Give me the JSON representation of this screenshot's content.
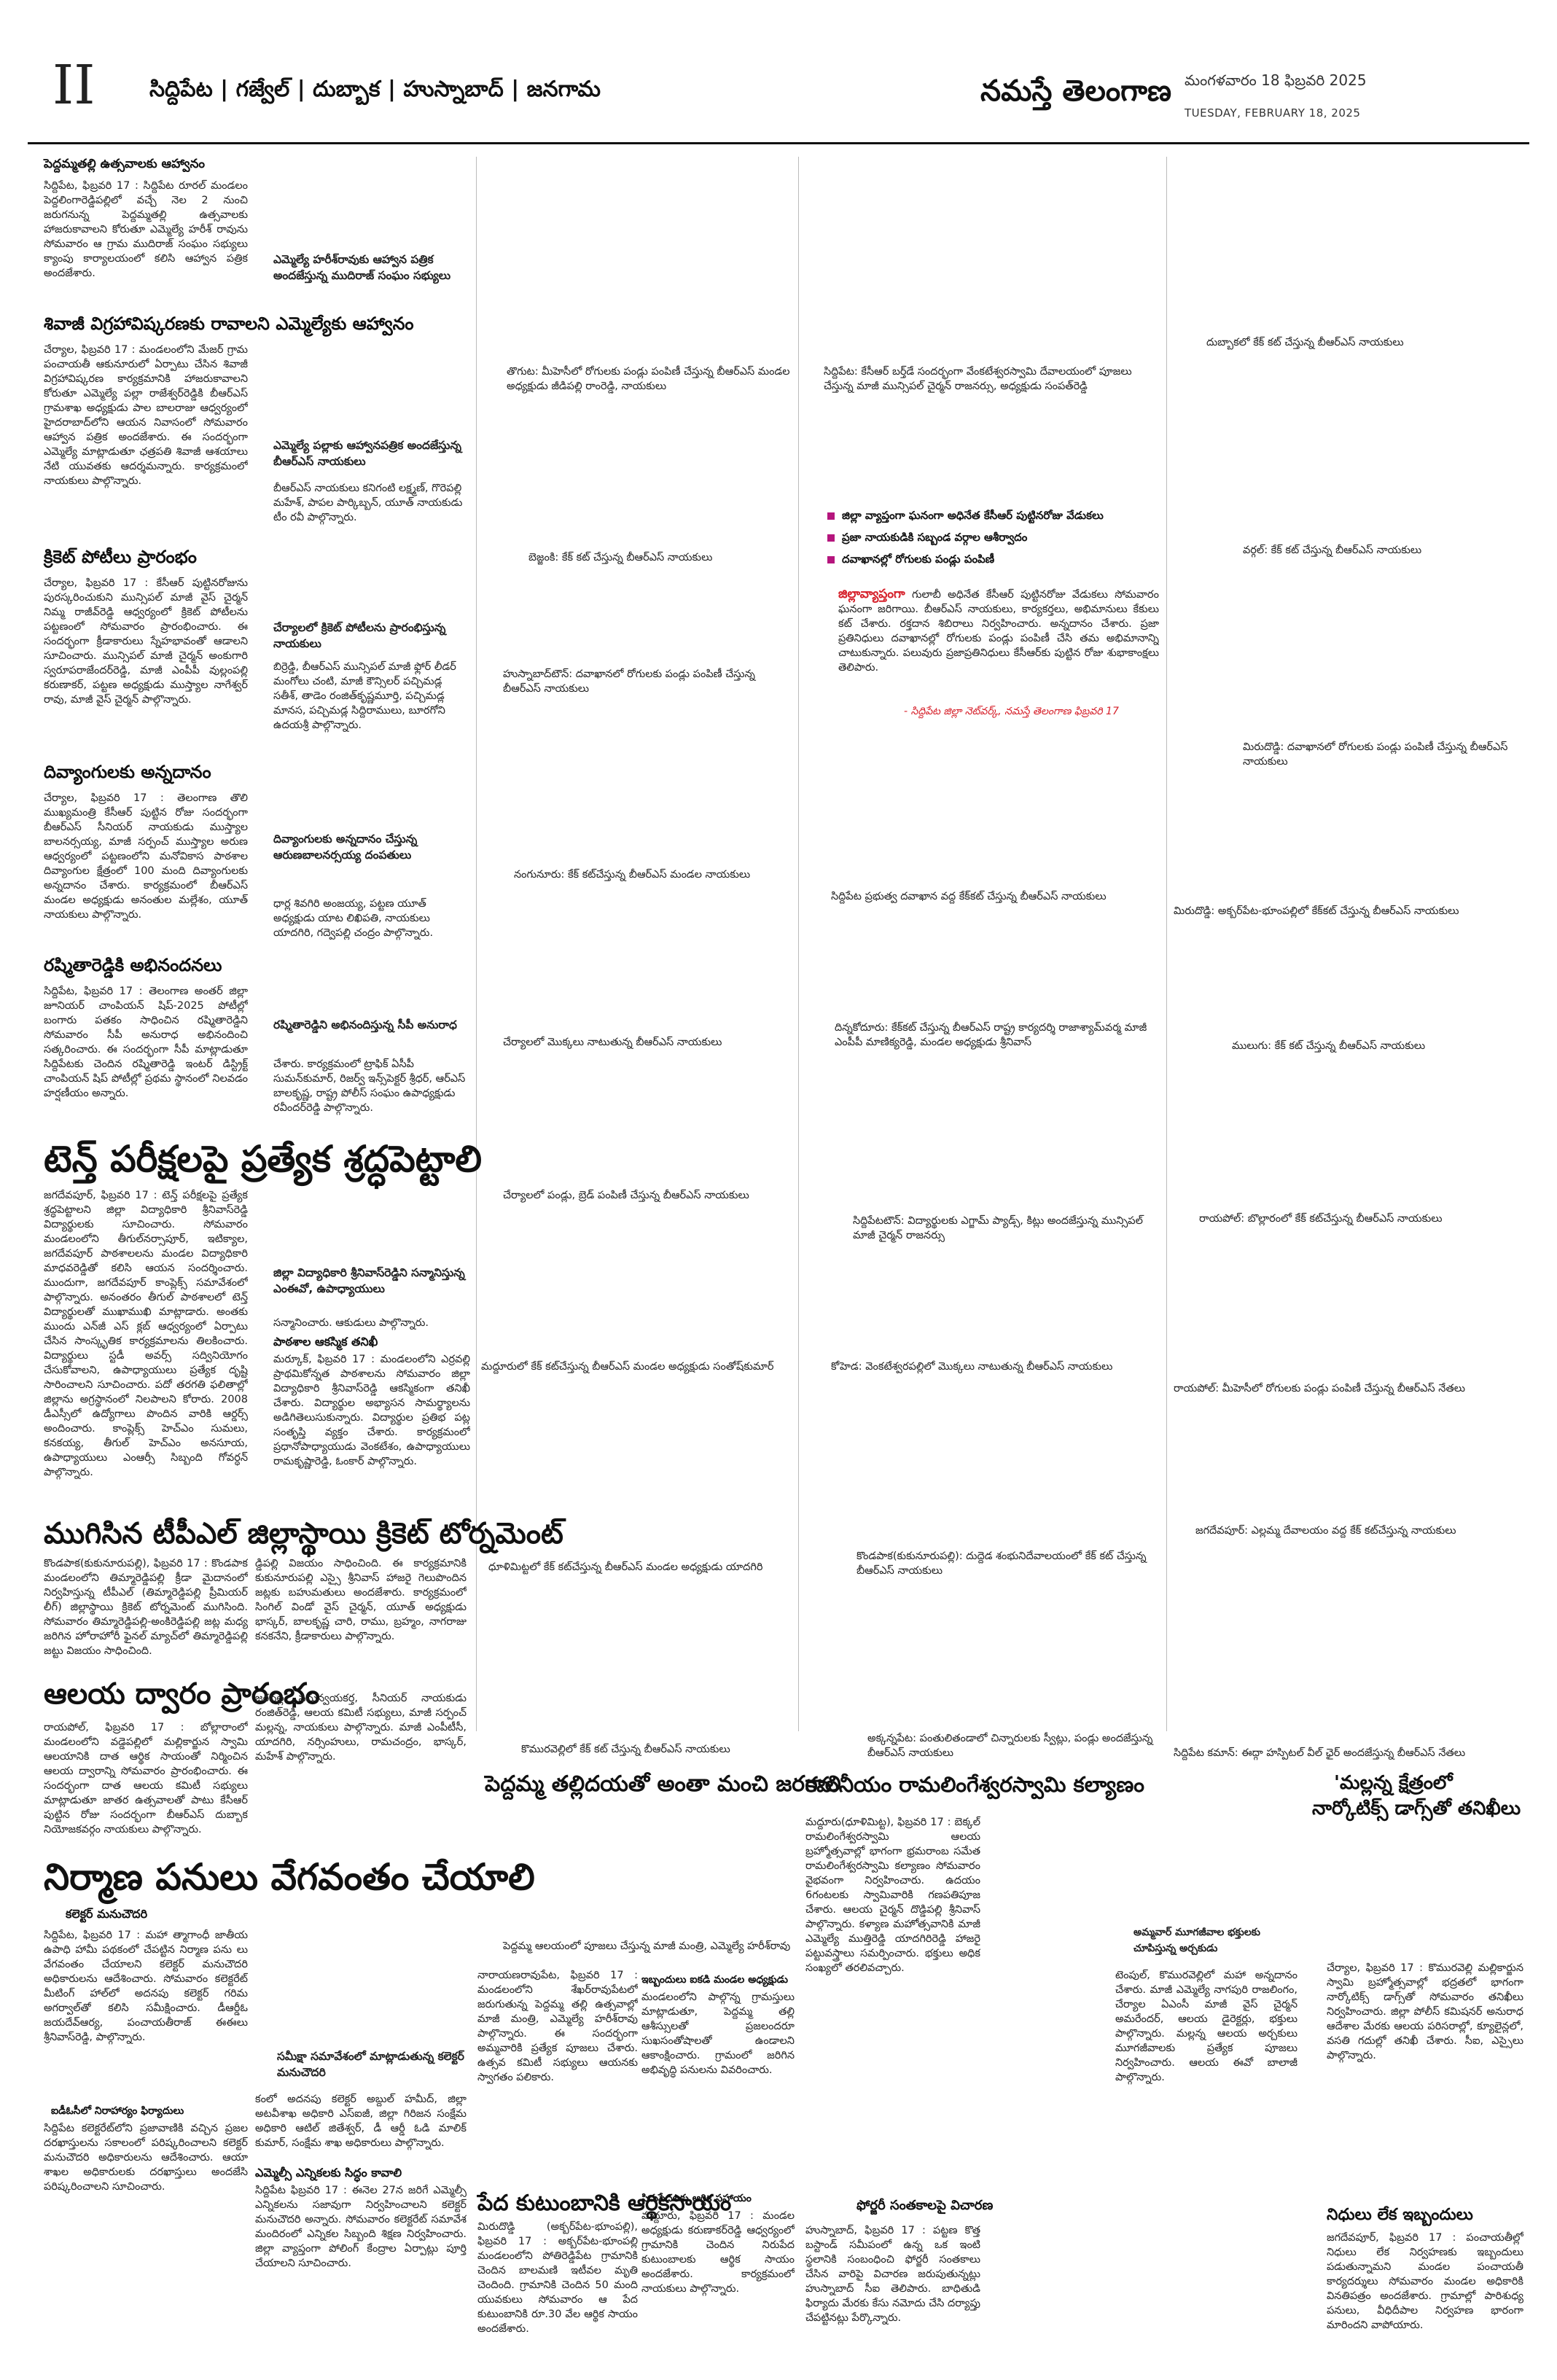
{
  "header": {
    "page_number": "II",
    "regions": "సిద్దిపేట | గజ్వేల్ | దుబ్బాక | హుస్నాబాద్ | జనగామ",
    "masthead": "నమస్తే తెలంగాణ",
    "date_te": "మంగళవారం 18 ఫిబ్రవరి 2025",
    "date_en": "TUESDAY, FEBRUARY 18, 2025"
  },
  "col1": {
    "a1_title": "పెద్దమ్మతల్లి ఉత్సవాలకు ఆహ్వానం",
    "a1_body": "సిద్దిపేట, ఫిబ్రవరి 17 : సిద్దిపేట రూరల్ మండలం పెద్దలింగారెడ్డిపల్లిలో వచ్చే నెల 2 నుంచి జరుగనున్న పెద్దమ్మతల్లి ఉత్సవాలకు హాజరుకావాలని కోరుతూ ఎమ్మెల్యే హరీశ్ రావును సోమవారం ఆ గ్రామ ముదిరాజ్ సంఘం సభ్యులు క్యాంపు కార్యాలయంలో కలిసి ఆహ్వాన పత్రిక అందజేశారు.",
    "a2_title": "శివాజీ విగ్రహావిష్కరణకు రావాలని ఎమ్మెల్యేకు ఆహ్వానం",
    "a2_body": "చేర్యాల, ఫిబ్రవరి 17 : మండలంలోని మేజర్ గ్రామ పంచాయతీ ఆకునూరులో ఏర్పాటు చేసిన శివాజీ విగ్రహావిష్కరణ కార్యక్రమానికి హాజరుకావాలని కోరుతూ ఎమ్మెల్యే పల్లా రాజేశ్వర్‌రెడ్డికి బీఆర్ఎస్ గ్రామశాఖ అధ్యక్షుడు పాల బాలరాజు ఆధ్వర్యంలో హైదరాబాద్‌లోని ఆయన నివాసంలో సోమవారం ఆహ్వాన పత్రిక అందజేశారు. ఈ సందర్భంగా ఎమ్మెల్యే మాట్లాడుతూ ఛత్రపతి శివాజీ ఆశయాలు నేటి యువతకు ఆదర్శమన్నారు. కార్యక్రమంలో నాయకులు పాల్గొన్నారు.",
    "a3_title": "క్రికెట్ పోటీలు ప్రారంభం",
    "a3_body": "చేర్యాల, ఫిబ్రవరి 17 : కేసీఆర్ పుట్టినరోజును పురస్కరించుకుని మున్సిపల్ మాజీ వైస్ చైర్మన్ నిమ్మ రాజీవ్‌రెడ్డి ఆధ్వర్యంలో క్రికెట్ పోటీలను పట్టణంలో సోమవారం ప్రారంభించారు. ఈ సందర్భంగా క్రీడాకారులు స్నేహభావంతో ఆడాలని సూచించారు. మున్సిపల్ మాజీ చైర్మన్ అంకుగారి స్వరూపరాజేందర్‌రెడ్డి, మాజీ ఎంపీపీ వుల్లంపల్లి కరుణాకర్, పట్టణ అధ్యక్షుడు ముస్త్యాల నాగేశ్వర్ రావు, మాజీ వైస్ చైర్మన్ పాల్గొన్నారు.",
    "a4_title": "దివ్యాంగులకు అన్నదానం",
    "a4_body": "చేర్యాల, ఫిబ్రవరి 17 : తెలంగాణ తొలి ముఖ్యమంత్రి కేసీఆర్ పుట్టిన రోజు సందర్భంగా బీఆర్ఎస్ సీనియర్ నాయకుడు ముస్త్యాల బాలనర్సయ్య, మాజీ సర్పంచ్ ముస్త్యాల అరుణ ఆధ్వర్యంలో పట్టణంలోని మనోవికాస పాఠశాల దివ్యాంగుల క్షేత్రంలో 100 మంది దివ్యాంగులకు అన్నదానం చేశారు. కార్యక్రమంలో బీఆర్ఎస్ మండల అధ్యక్షుడు అనంతుల మల్లేశం, యూత్ నాయకులు పాల్గొన్నారు.",
    "a5_title": "రష్మితారెడ్డికి అభినందనలు",
    "a5_body": "సిద్దిపేట, ఫిబ్రవరి 17 : తెలంగాణ అంతర్ జిల్లా జూనియర్ చాంపియన్ షిప్-2025 పోటీల్లో బంగారు పతకం సాధించిన రష్మితారెడ్డిని సోమవారం సీపీ అనురాధ అభినందించి సత్కరించారు. ఈ సందర్భంగా సీపీ మాట్లాడుతూ సిద్దిపేటకు చెందిన రష్మితారెడ్డి ఇంటర్ డిస్ట్రిక్ట్ చాంపియన్ షిప్ పోటీల్లో ప్రథమ స్థానంలో నిలవడం హర్షణీయం అన్నారు.",
    "cap_a1": "ఎమ్మెల్యే హరీశ్‌రావుకు ఆహ్వాన పత్రిక అందజేస్తున్న ముదిరాజ్ సంఘం సభ్యులు",
    "cap_a2": "ఎమ్మెల్యే పల్లాకు ఆహ్వానపత్రిక అందజేస్తున్న బీఆర్ఎస్ నాయకులు",
    "cap_a2_n": "బీఆర్ఎస్ నాయకులు కనిగంటి లక్ష్మణ్, గొరెపల్లి మహేశ్, పాపల పార్కిబ్బన్, యూత్ నాయకుడు టీం రవీ పాల్గొన్నారు.",
    "cap_a3": "చేర్యాలలో క్రికెట్ పోటీలను ప్రారంభిస్తున్న నాయకులు",
    "cap_a3_n": "బిర్రెడ్డి, బీఆర్ఎస్ మున్సిపల్ మాజీ ఫ్లోర్ లీడర్ మంగోలు చంటి, మాజీ కౌన్సిలర్ పచ్చిమడ్ల సతీశ్, తాడెం రంజిత్‌కృష్ణమూర్తి, పచ్చిమడ్ల మానస, పచ్చిమడ్ల సిద్దిరాములు, బూరగోని ఉదయశ్రీ పాల్గొన్నారు.",
    "cap_a4": "దివ్యాంగులకు అన్నదానం చేస్తున్న ఆరుణబాలనర్సయ్య దంపతులు",
    "cap_a4_n": "ధార్ల శివగిరి అంజయ్య, పట్టణ యూత్ అధ్యక్షుడు యాట లిఖిపతి, నాయకులు యాదగిరి, గద్వెపల్లి చంద్రం పాల్గొన్నారు.",
    "cap_a5": "రష్మితారెడ్డిని అభినందిస్తున్న సీపీ అనురాధ",
    "cap_a5_n": "చేశారు. కార్యక్రమంలో ట్రాఫిక్ ఏసీపీ సుమన్‌కుమార్, రిజర్వ్ ఇన్స్‌పెక్టర్ శ్రీధర్, ఆర్ఎస్ బాలకృష్ణ, రాష్ట్ర పోలీస్ సంఘం ఉపాధ్యక్షుడు రవీందర్‌రెడ్డి పాల్గొన్నారు.",
    "a6_title": "టెన్త్ పరీక్షలపై ప్రత్యేక శ్రద్ధపెట్టాలి",
    "a6_body": "జగదేవపూర్, ఫిబ్రవరి 17 : టెన్త్ పరీక్షలపై ప్రత్యేక శ్రద్ధపెట్టాలని జిల్లా విద్యాధికారి శ్రీనివాస్‌రెడ్డి విద్యార్థులకు సూచించారు. సోమవారం మండలంలోని తీగుల్‌నర్సాపూర్, ఇటిక్యాల, జగదేవపూర్ పాఠశాలలను మండల విద్యాధికారి మాధవరెడ్డితో కలిసి ఆయన సందర్శించారు. ముందుగా, జగదేవపూర్ కాంప్లెక్స్ సమావేశంలో పాల్గొన్నారు. అనంతరం తీగుల్ పాఠశాలలో టెన్త్ విద్యార్థులతో ముఖాముఖి మాట్లాడారు. అంతకు ముందు ఎన్‌జీ ఎస్ క్లబ్ ఆధ్వర్యంలో ఏర్పాటు చేసిన సాంస్కృతిక కార్యక్రమాలను తిలకించారు. విద్యార్థులు స్టడీ అవర్స్ సద్వినియోగం చేసుకోవాలని, ఉపాధ్యాయులు ప్రత్యేక దృష్టి సారించాలని సూచించారు. పదో తరగతి ఫలితాల్లో జిల్లాను అగ్రస్థానంలో నిలపాలని కోరారు. 2008 డీఎస్సీలో ఉద్యోగాలు పొందిన వారికి ఆర్డర్స్ అందించారు. కాంప్లెక్స్ హెచ్‌ఎం సుమలు, కనకయ్య, తీగుల్ హెచ్‌ఎం అనసూయ, ఉపాధ్యాయులు ఎంఆర్సీ సిబ్బంది గోవర్ధన్ పాల్గొన్నారు.",
    "cap_a6": "జిల్లా విద్యాధికారి శ్రీనివాస్‌రెడ్డిని సన్మానిస్తున్న ఎంఈవో, ఉపాధ్యాయులు",
    "cap_a6_n": "సన్మానించారు. ఆకుడులు పాల్గొన్నారు.",
    "a6b_head": "పాఠశాల ఆకస్మిక తనిఖీ",
    "a6b_body": "మర్కూక్, ఫిబ్రవరి 17 : మండలంలోని ఎర్రవల్లి ప్రాథమికోన్నత పాఠశాలను సోమవారం జిల్లా విద్యాధికారి శ్రీనివాస్‌రెడ్డి ఆకస్మికంగా తనిఖీ చేశారు. విద్యార్థుల అభ్యాసన సామర్థ్యాలను అడిగితెలుసుకున్నారు. విద్యార్థుల ప్రతిభ పట్ల సంతృప్తి వ్యక్తం చేశారు. కార్యక్రమంలో ప్రధానోపాధ్యాయుడు వెంకటేశం, ఉపాధ్యాయులు రామకృష్ణారెడ్డి, ఓంకార్ పాల్గొన్నారు.",
    "a7_title": "ముగిసిన టీపీఎల్ జిల్లాస్థాయి క్రికెట్ టోర్నమెంట్",
    "a7_body": "కొండపాక(కుకునూరుపల్లి), ఫిబ్రవరి 17 : కొండపాక మండలంలోని తిమ్మారెడ్డిపల్లి క్రీడా మైదానంలో నిర్వహిస్తున్న టీపీఎల్ (తిమ్మారెడ్డిపల్లి ప్రీమియర్ లీగ్) జిల్లాస్థాయి క్రికెట్ టోర్నమెంట్ ముగిసింది. సోమవారం తిమ్మారెడ్డిపల్లి-అంకిరెడ్డిపల్లి జట్ల మధ్య జరిగిన హోరాహోరీ ఫైనల్ మ్యాచ్‌లో తిమ్మారెడ్డిపల్లి జట్టు విజయం సాధించింది.",
    "a7_body2": "డ్డిపల్లి విజయం సాధించింది. ఈ కార్యక్రమానికి కుకునూరుపల్లి ఎస్సై శ్రీనివాస్ హాజరై గెలుపొందిన జట్లకు బహుమతులు అందజేశారు. కార్యక్రమంలో సింగిల్ విండో వైస్ చైర్మన్, యూత్ అధ్యక్షుడు భాస్కర్, బాలకృష్ణ చారి, రాము, బ్రహ్మం, నాగరాజు కనకనేని, క్రీడాకారులు పాల్గొన్నారు.",
    "a8_title": "ఆలయ ద్వారం ప్రారంభం",
    "a8_body": "రాయపోల్, ఫిబ్రవరి 17 : బోల్లారాంలో మండలంలోని వడ్డెపల్లిలో మల్లికార్జున స్వామి ఆలయానికి దాత ఆర్థిక సాయంతో నిర్మించిన ఆలయ ద్వారాన్ని సోమవారం ప్రారంభించారు. ఈ సందర్భంగా దాత ఆలయ కమిటీ సభ్యులు మాట్లాడుతూ జాతర ఉత్సవాలతో పాటు కేసీఆర్ పుట్టిన రోజు సందర్భంగా బీఆర్ఎస్ దుబ్బాక నియోజకవర్గం నాయకులు పాల్గొన్నారు.",
    "a8_body2": "జరవల్ల సమన్వయకర్త, సీనియర్ నాయకుడు రంజిత్‌రెడ్డి, ఆలయ కమిటీ సభ్యులు, మాజీ సర్పంచ్ మల్లన్న, నాయకులు పాల్గొన్నారు. మాజీ ఎంపీటీసీ, యాదగిరి, నర్సింహులు, రామచంద్రం, భాస్కర్, మహేశ్ పాల్గొన్నారు.",
    "a9_title": "నిర్మాణ పనులు వేగవంతం చేయాలి",
    "a9_sub": "కలెక్టర్ మనుచౌదరి",
    "a9_body": "సిద్దిపేట, ఫిబ్రవరి 17 : మహా త్మాగాంధీ జాతీయ ఉపాధి హామీ పథకంలో చేపట్టిన నిర్మాణ పను లు వేగవంతం చేయాలని కలెక్టర్ మనుచౌదరి అధికారులను ఆదేశించారు. సోమవారం కలెక్టరేట్ మీటింగ్ హాల్‌లో అదనపు కలెక్టర్ గరిమ అగర్వాల్‌తో కలిసి సమీక్షించారు. డీఆర్డీఓ జయదేవ్‌ఆర్య, పంచాయతీరాజ్ ఈఈలు శ్రీనివాస్‌రెడ్డి, పాల్గొన్నారు.",
    "a9_sub2": "ఐడీఓసీలో నిరాహార్యం ఫిర్యాదులు",
    "a9_body2": "సిద్దిపేట కలెక్టరేట్‌లోని ప్రజావాణికి వచ్చిన ప్రజల దరఖాస్తులను సకాలంలో పరిష్కరించాలని కలెక్టర్ మనుచౌదరి అధికారులను ఆదేశించారు. ఆయా శాఖల అధికారులకు దరఖాస్తులు అందజేసి పరిష్కరించాలని సూచించారు.",
    "a9_cap": "సమీక్షా సమావేశంలో మాట్లాడుతున్న కలెక్టర్ మనుచౌదరి",
    "a9_body3": "కంలో అదనపు కలెక్టర్ అబ్దుల్ హమీద్, జిల్లా అటవీశాఖ అధికారి ఎస్ఐజీ, జిల్లా గిరిజన సంక్షేమ అధికారి ఆటిల్ జితేశ్వర్, డీ ఆర్డీ ఓడి మాలిక్ కుమార్, సంక్షేమ శాఖ అధికారులు పాల్గొన్నారు.",
    "a9_cap2": "ఎమ్మెల్సీ ఎన్నికలకు సిద్ధం కావాలి",
    "a9_body4": "సిద్దిపేట ఫిబ్రవరి 17 : ఈనెల 27న జరిగే ఎమ్మెల్సీ ఎన్నికలను సజావుగా నిర్వహించాలని కలెక్టర్ మనుచౌదరి అన్నారు. సోమవారం కలెక్టరేట్ సమావేశ మందిరంలో ఎన్నికల సిబ్బంది శిక్షణ నిర్వహించారు. జిల్లా వ్యాప్తంగా పోలింగ్ కేంద్రాల ఏర్పాట్లు పూర్తి చేయాలని సూచించారు."
  },
  "col2": {
    "cap_thoguta": "తొగుట: మీహెసీలో రోగులకు పండ్లు పంపిణీ చేస్తున్న బీఆర్ఎస్ మండల అధ్యక్షుడు జీడిపల్లి రాంరెడ్డి, నాయకులు",
    "cap_bejjanki": "బెజ్జంకి: కేక్ కట్ చేస్తున్న బీఆర్ఎస్ నాయకులు",
    "cap_husnabad": "హుస్నాబాద్‌టౌన్: దవాఖానలో రోగులకు పండ్లు పంపిణీ చేస్తున్న బీఆర్ఎస్ నాయకులు",
    "cap_nangunuru": "నంగునూరు: కేక్ కట్‌చేస్తున్న బీఆర్ఎస్ మండల నాయకులు",
    "cap_cheryala2": "చేర్యాలలో మొక్కలు నాటుతున్న బీఆర్ఎస్ నాయకులు",
    "cap_cheryala3": "చేర్యాలలో పండ్లు, బ్రెడ్ పంపిణీ చేస్తున్న బీఆర్ఎస్ నాయకులు",
    "cap_maddur": "మద్దూరులో కేక్ కట్‌చేస్తున్న బీఆర్ఎస్ మండల అధ్యక్షుడు సంతోష్‌కుమార్",
    "cap_dulimitta": "ధూళిమిట్టలో కేక్ కట్‌చేస్తున్న బీఆర్ఎస్ మండల అధ్యక్షుడు యాదగిరి",
    "cap_komuravelli": "కొమురవెల్లిలో కేక్ కట్ చేస్తున్న బీఆర్ఎస్ నాయకులు"
  },
  "col3": {
    "cap_siddipet_temple": "సిద్దిపేట: కేసీఆర్ బర్త్‌డే సందర్భంగా వేంకటేశ్వరస్వామి దేవాలయంలో పూజలు చేస్తున్న మాజీ మున్సిపల్ చైర్మన్ రాజనర్సు, అధ్యక్షుడు సంపత్‌రెడ్డి",
    "bullets": [
      "జిల్లా వ్యాప్తంగా ఘనంగా అధినేత కేసీఆర్ పుట్టినరోజు వేడుకలు",
      "ప్రజా నాయకుడికి సబ్బండ వర్గాల ఆశీర్వాదం",
      "దవాఖానల్లో రోగులకు పండ్లు పంపిణీ"
    ],
    "lede_red": "జిల్లావ్యాప్తంగా",
    "lede_body": "గులాబీ అధినేత కేసీఆర్ పుట్టినరోజు వేడుకలు సోమవారం ఘనంగా జరిగాయి. బీఆర్ఎస్ నాయకులు, కార్యకర్తలు, అభిమానులు కేకులు కట్ చేశారు. రక్తదాన శిబిరాలు నిర్వహించారు. అన్నదానం చేశారు. ప్రజా ప్రతినిధులు దవాఖానల్లో రోగులకు పండ్లు పంపిణీ చేసి తమ అభిమానాన్ని చాటుకున్నారు. పలువురు ప్రజాప్రతినిధులు కేసీఆర్‌కు పుట్టిన రోజు శుభాకాంక్షలు తెలిపారు.",
    "byline": "- సిద్దిపేట జిల్లా నెట్‌వర్క్, నమస్తే తెలంగాణ ఫిబ్రవరి 17",
    "cap_siddipet_gov": "సిద్దిపేట ప్రభుత్వ దవాఖాన వద్ద కేక్‌కట్ చేస్తున్న బీఆర్ఎస్ నాయకులు",
    "cap_dhoolmitta2": "దిన్నకోదూరు: కేక్‌కట్ చేస్తున్న బీఆర్ఎస్ రాష్ట్ర కార్యదర్శి రాజాశ్యామ్‌వర్మ మాజీ ఎంపీపీ మాణిక్యరెడ్డి, మండల అధ్యక్షుడు శ్రీనివాస్",
    "cap_siddipet_town": "సిద్దిపేటటౌన్: విద్యార్థులకు ఎగ్జామ్ ప్యాడ్స్, కిట్లు అందజేస్తున్న మున్సిపల్ మాజీ చైర్మన్ రాజనర్సు",
    "cap_kohed": "కోహెడ: వెంకటేశ్వరపల్లిలో మొక్కలు నాటుతున్న బీఆర్ఎస్ నాయకులు",
    "cap_kondapaka": "కొండపాక(కుకునూరుపల్లి): దుద్దెడ శంభునిదేవాలయంలో కేక్ కట్ చేస్తున్న బీఆర్ఎస్ నాయకులు",
    "cap_akkannapet": "అక్కన్నపేట: పంతులితండాలో చిన్నారులకు స్వీట్లు, పండ్లు అందజేస్తున్న బీఆర్ఎస్ నాయకులు"
  },
  "col4": {
    "cap_dubbaka": "దుబ్బాకలో కేక్ కట్ చేస్తున్న బీఆర్ఎస్ నాయకులు",
    "cap_vargal": "వర్గల్: కేక్ కట్ చేస్తున్న బీఆర్ఎస్ నాయకులు",
    "cap_mirudoddi": "మిరుదొడ్డి: దవాఖానలో రోగులకు పండ్లు పంపిణీ చేస్తున్న బీఆర్ఎస్ నాయకులు",
    "cap_mirudoddi2": "మిరుదొడ్డి: అక్బర్‌పేట-భూంపల్లిలో కేక్‌కట్ చేస్తున్న బీఆర్ఎస్ నాయకులు",
    "cap_mulugu": "ములుగు: కేక్ కట్ చేస్తున్న బీఆర్ఎస్ నాయకులు",
    "cap_rayapol": "రాయపోల్: బొల్లారంలో కేక్ కట్‌చేస్తున్న బీఆర్ఎస్ నాయకులు",
    "cap_rayapol2": "రాయపోల్: మీహెసీలో రోగులకు పండ్లు పంపిణీ చేస్తున్న బీఆర్ఎస్ నేతలు",
    "cap_jagadevpur": "జగదేవపూర్: ఎల్లమ్మ దేవాలయం వద్ద కేక్ కట్‌చేస్తున్న నాయకులు",
    "cap_siddipet_camp": "సిద్దిపేట కమాన్: ఈద్గా హస్పిటల్ వీల్ ఛైర్ అందజేస్తున్న బీఆర్ఎస్ నేతలు"
  },
  "bottom": {
    "b1_title": "పెద్దమ్మ తల్లిదయతో అంతా మంచి జరగాలి",
    "b1_cap": "పెద్దమ్మ ఆలయంలో పూజలు చేస్తున్న మాజీ మంత్రి, ఎమ్మెల్యే హరీశ్‌రావు",
    "b1_body": "నారాయణరావుపేట, ఫిబ్రవరి 17 : మండలంలోని శేఖర్‌రావుపేటలో జరుగుతున్న పెద్దమ్మ తల్లి ఉత్సవాల్లో మాజీ మంత్రి, ఎమ్మెల్యే హరీశ్‌రావు పాల్గొన్నారు. ఈ సందర్భంగా అమ్మవారికి ప్రత్యేక పూజలు చేశారు. ఉత్సవ కమిటీ సభ్యులు ఆయనకు స్వాగతం పలికారు.",
    "b1_sub": "ఇబ్బందులు ఐకడి మండల అధ్యక్షుడు",
    "b1_body2": "మండలంలోని పాల్గొన్న గ్రామస్తులు మాట్లాడుతూ, పెద్దమ్మ తల్లి ఆశీస్సులతో ప్రజలందరూ సుఖసంతోషాలతో ఉండాలని ఆకాంక్షించారు. గ్రామంలో జరిగిన అభివృద్ధి పనులను వివరించారు.",
    "b2_title": "పేద కుటుంబానికి ఆర్థికసాయం",
    "b2_body": "మిరుదొడ్డి (అక్బర్‌పేట-భూంపల్లి), ఫిబ్రవరి 17 : అక్బర్‌పేట-భూంపల్లి మండలంలోని పోతిరెడ్డిపేట గ్రామానికి చెందిన బాలమణి ఇటీవల మృతి చెందింది. గ్రామానికి చెందిన 50 మంది యువకులు సోమవారం ఆ పేద కుటుంబానికి రూ.30 వేల ఆర్థిక సాయం అందజేశారు.",
    "b2_sub": "సిరుపేదలకు ఆర్థిక సహాయం",
    "b2_body2": "మద్దూరు, ఫిబ్రవరి 17 : మండల అధ్యక్షుడు కరుణాకర్‌రెడ్డి ఆధ్వర్యంలో గ్రామానికి చెందిన నిరుపేద కుటుంబాలకు ఆర్థిక సాయం అందజేశారు. కార్యక్రమంలో నాయకులు పాల్గొన్నారు.",
    "b3_title": "కమనీయం రామలింగేశ్వరస్వామి కల్యాణం",
    "b3_body": "మద్దూరు(ధూళిమిట్ట), ఫిబ్రవరి 17 : బెక్కల్ రామలింగేశ్వరస్వామి ఆలయ బ్రహ్మోత్సవాల్లో భాగంగా భ్రమరాంబ సమేత రామలింగేశ్వరస్వామి కల్యాణం సోమవారం వైభవంగా నిర్వహించారు. ఉదయం 6గంటలకు స్వామివారికి గణపతిపూజ చేశారు. ఆలయ చైర్మన్ దొడ్డిపల్లి శ్రీనివాస్ పాల్గొన్నారు. కళ్యాణ మహోత్సవానికి మాజీ ఎమ్మెల్యే ముత్తిరెడ్డి యాదగిరిరెడ్డి హాజరై పట్టువస్త్రాలు సమర్పించారు. భక్తులు అధిక సంఖ్యలో తరలివచ్చారు.",
    "b4_title": "ఫోర్జరీ సంతకాలపై విచారణ",
    "b4_body": "హుస్నాబాద్, ఫిబ్రవరి 17 : పట్టణ కొత్త బస్టాండ్ సమీపంలో ఉన్న ఒక ఇంటి స్థలానికి సంబంధించి ఫోర్జరీ సంతకాలు చేసిన వారిపై విచారణ జరుపుతున్నట్లు హుస్నాబాద్ సీఐ తెలిపారు. బాధితుడి ఫిర్యాదు మేరకు కేసు నమోదు చేసి దర్యాప్తు చేపట్టినట్లు పేర్కొన్నారు.",
    "b5_title_1": "'మల్లన్న క్షేత్రంలో",
    "b5_title_2": "నార్కోటిక్స్ డాగ్స్‌తో తనిఖీలు",
    "b5_cap": "అమ్మవార్ మూగజీవాల భక్తులకు చూపిస్తున్న అర్చకుడు",
    "b5_body": "చేర్యాల, ఫిబ్రవరి 17 : కొమురవెల్లి మల్లికార్జున స్వామి బ్రహ్మోత్సవాల్లో భద్రతలో భాగంగా నార్కోటిక్స్ డాగ్స్‌తో సోమవారం తనిఖీలు నిర్వహించారు. జిల్లా పోలీస్ కమిషనర్ అనురాధ ఆదేశాల మేరకు ఆలయ పరిసరాల్లో, క్యూలైన్లలో, వసతి గదుల్లో తనిఖీ చేశారు. సీఐ, ఎస్సైలు పాల్గొన్నారు.",
    "b5_sub": "నిధులు లేక ఇబ్బందులు",
    "b5_body2": "జగదేవపూర్, ఫిబ్రవరి 17 : పంచాయతీల్లో నిధులు లేక నిర్వహణకు ఇబ్బందులు పడుతున్నామని మండల పంచాయతీ కార్యదర్శులు సోమవారం మండల అధికారికి వినతిపత్రం అందజేశారు. గ్రామాల్లో పారిశుధ్య పనులు, వీధిదీపాల నిర్వహణ భారంగా మారిందని వాపోయారు.",
    "b6_body": "టెంపుల్, కొమురవెల్లిలో మహా అన్నదానం చేశారు. మాజీ ఎమ్మెల్యే నాగపురి రాజలింగం, చేర్యాల ఏఎంసీ మాజీ వైస్ చైర్మన్ అమరేందర్, ఆలయ డైరెక్టర్లు, భక్తులు పాల్గొన్నారు. మల్లన్న ఆలయ అర్చకులు మూగజీవాలకు ప్రత్యేక పూజలు నిర్వహించారు. ఆలయ ఈవో బాలాజీ పాల్గొన్నారు."
  }
}
